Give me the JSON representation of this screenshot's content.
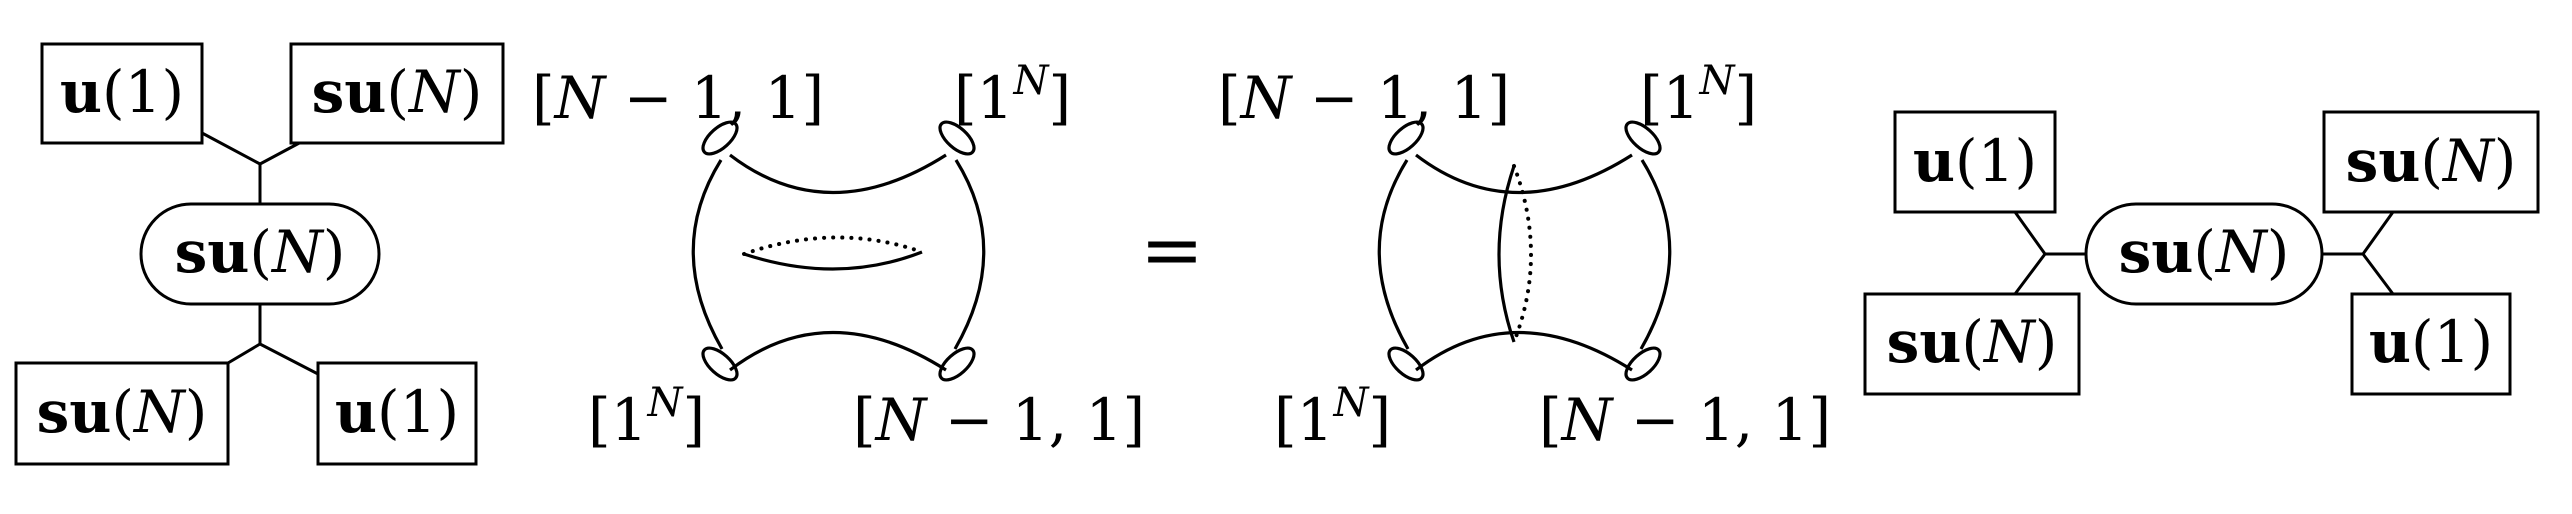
{
  "quiver_left": {
    "top_left_box": {
      "fr": "u",
      "args": "(1)"
    },
    "top_right_box": {
      "fr": "su",
      "open": "(",
      "var": "N",
      "close": ")"
    },
    "center_node": {
      "fr": "su",
      "open": "(",
      "var": "N",
      "close": ")"
    },
    "bottom_left_box": {
      "fr": "su",
      "open": "(",
      "var": "N",
      "close": ")"
    },
    "bottom_right_box": {
      "fr": "u",
      "args": "(1)"
    }
  },
  "surface_left": {
    "top_left_label": {
      "open": "[",
      "var": "N",
      "rest": " − 1, 1]"
    },
    "top_right_label": {
      "open": "[1",
      "sup": "N",
      "close": "]"
    },
    "bottom_left_label": {
      "open": "[1",
      "sup": "N",
      "close": "]"
    },
    "bottom_right_label": {
      "open": "[",
      "var": "N",
      "rest": " − 1, 1]"
    }
  },
  "equals": "=",
  "surface_right": {
    "top_left_label": {
      "open": "[",
      "var": "N",
      "rest": " − 1, 1]"
    },
    "top_right_label": {
      "open": "[1",
      "sup": "N",
      "close": "]"
    },
    "bottom_left_label": {
      "open": "[1",
      "sup": "N",
      "close": "]"
    },
    "bottom_right_label": {
      "open": "[",
      "var": "N",
      "rest": " − 1, 1]"
    }
  },
  "quiver_right": {
    "top_left_box": {
      "fr": "u",
      "args": "(1)"
    },
    "bottom_left_box": {
      "fr": "su",
      "open": "(",
      "var": "N",
      "close": ")"
    },
    "center_node": {
      "fr": "su",
      "open": "(",
      "var": "N",
      "close": ")"
    },
    "top_right_box": {
      "fr": "su",
      "open": "(",
      "var": "N",
      "close": ")"
    },
    "bottom_right_box": {
      "fr": "u",
      "args": "(1)"
    }
  }
}
